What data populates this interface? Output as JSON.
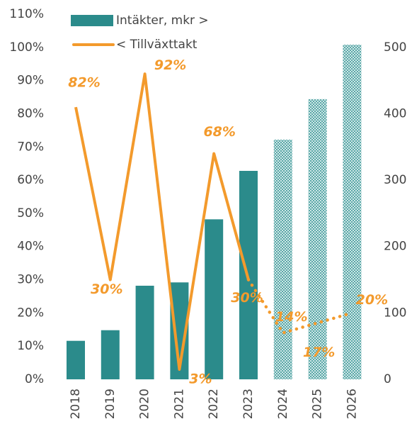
{
  "chart_data": {
    "type": "bar_line",
    "categories": [
      "2018",
      "2019",
      "2020",
      "2021",
      "2022",
      "2023",
      "2024",
      "2025",
      "2026"
    ],
    "forecast_start": 6,
    "series": [
      {
        "name": "Intäkter, mkr >",
        "kind": "bar",
        "axis": "y2",
        "color": "#2b8b8b",
        "values": [
          58,
          74,
          141,
          146,
          241,
          314,
          361,
          422,
          504
        ]
      },
      {
        "name": "< Tillväxttakt",
        "kind": "line",
        "axis": "y",
        "color": "#f39a2c",
        "values": [
          82,
          30,
          92,
          3,
          68,
          30,
          14,
          17,
          20
        ],
        "value_labels": [
          "82%",
          "30%",
          "92%",
          "3%",
          "68%",
          "30%",
          "14%",
          "17%",
          "20%"
        ]
      }
    ],
    "ylim": [
      0,
      110
    ],
    "yticks": [
      {
        "value": 0,
        "label": "0%"
      },
      {
        "value": 10,
        "label": "10%"
      },
      {
        "value": 20,
        "label": "20%"
      },
      {
        "value": 30,
        "label": "30%"
      },
      {
        "value": 40,
        "label": "40%"
      },
      {
        "value": 50,
        "label": "50%"
      },
      {
        "value": 60,
        "label": "60%"
      },
      {
        "value": 70,
        "label": "70%"
      },
      {
        "value": 80,
        "label": "80%"
      },
      {
        "value": 90,
        "label": "90%"
      },
      {
        "value": 100,
        "label": "100%"
      },
      {
        "value": 110,
        "label": "110%"
      }
    ],
    "y2lim": [
      0,
      550
    ],
    "y2ticks": [
      0,
      100,
      200,
      300,
      400,
      500
    ],
    "legend": "top-left",
    "grid": false
  }
}
